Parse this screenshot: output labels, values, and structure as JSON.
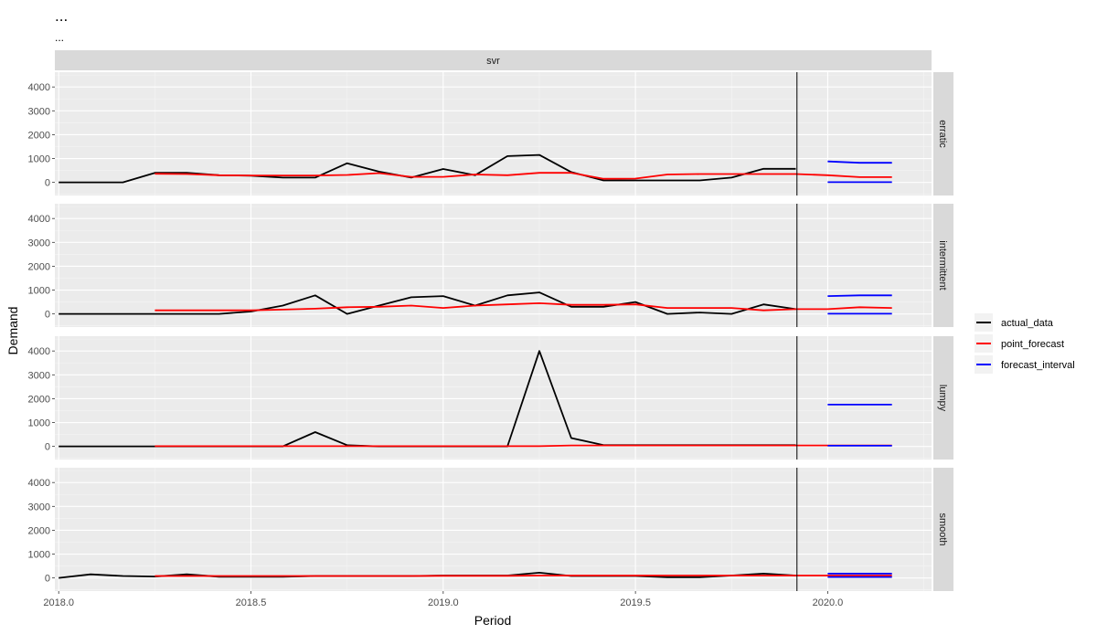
{
  "chart_data": {
    "type": "line",
    "title": "...",
    "subtitle": "...",
    "facet_column": "svr",
    "xlabel": "Period",
    "ylabel": "Demand",
    "xlim": [
      2017.99,
      2020.27
    ],
    "ylim": [
      -550,
      4620
    ],
    "x_ticks": [
      2018.0,
      2018.5,
      2019.0,
      2019.5,
      2020.0
    ],
    "x_tick_labels": [
      "2018.0",
      "2018.5",
      "2019.0",
      "2019.5",
      "2020.0"
    ],
    "y_ticks": [
      0,
      1000,
      2000,
      3000,
      4000
    ],
    "y_tick_labels": [
      "0",
      "1000",
      "2000",
      "3000",
      "4000"
    ],
    "vline_x": 2019.92,
    "grid": true,
    "legend_position": "right",
    "legend": [
      {
        "name": "actual_data",
        "color": "#000000"
      },
      {
        "name": "point_forecast",
        "color": "#ff0000"
      },
      {
        "name": "forecast_interval",
        "color": "#0000ff"
      }
    ],
    "panels": [
      {
        "label": "erratic",
        "actual_data": {
          "x": [
            2018.0,
            2018.083,
            2018.167,
            2018.25,
            2018.333,
            2018.417,
            2018.5,
            2018.583,
            2018.667,
            2018.75,
            2018.833,
            2018.917,
            2019.0,
            2019.083,
            2019.167,
            2019.25,
            2019.333,
            2019.417,
            2019.5,
            2019.583,
            2019.667,
            2019.75,
            2019.833,
            2019.917
          ],
          "y": [
            0,
            0,
            0,
            400,
            400,
            300,
            280,
            200,
            200,
            800,
            450,
            200,
            560,
            300,
            1100,
            1150,
            430,
            80,
            80,
            80,
            80,
            200,
            570,
            570
          ]
        },
        "point_forecast": {
          "x": [
            2018.25,
            2018.333,
            2018.417,
            2018.5,
            2018.583,
            2018.667,
            2018.75,
            2018.833,
            2018.917,
            2019.0,
            2019.083,
            2019.167,
            2019.25,
            2019.333,
            2019.417,
            2019.5,
            2019.583,
            2019.667,
            2019.75,
            2019.833,
            2019.917,
            2020.0,
            2020.083,
            2020.167
          ],
          "y": [
            360,
            350,
            300,
            290,
            290,
            290,
            310,
            390,
            230,
            230,
            330,
            300,
            400,
            400,
            150,
            160,
            330,
            350,
            350,
            350,
            350,
            300,
            220,
            220
          ]
        },
        "interval_upper": {
          "x": [
            2020.0,
            2020.083,
            2020.167
          ],
          "y": [
            880,
            820,
            820
          ]
        },
        "interval_lower": {
          "x": [
            2020.0,
            2020.083,
            2020.167
          ],
          "y": [
            10,
            10,
            10
          ]
        }
      },
      {
        "label": "intermittent",
        "actual_data": {
          "x": [
            2018.0,
            2018.083,
            2018.167,
            2018.25,
            2018.333,
            2018.417,
            2018.5,
            2018.583,
            2018.667,
            2018.75,
            2018.833,
            2018.917,
            2019.0,
            2019.083,
            2019.167,
            2019.25,
            2019.333,
            2019.417,
            2019.5,
            2019.583,
            2019.667,
            2019.75,
            2019.833,
            2019.917
          ],
          "y": [
            0,
            0,
            0,
            0,
            0,
            0,
            100,
            350,
            780,
            0,
            350,
            700,
            750,
            350,
            780,
            900,
            300,
            300,
            500,
            0,
            60,
            0,
            400,
            200
          ]
        },
        "point_forecast": {
          "x": [
            2018.25,
            2018.333,
            2018.417,
            2018.5,
            2018.583,
            2018.667,
            2018.75,
            2018.833,
            2018.917,
            2019.0,
            2019.083,
            2019.167,
            2019.25,
            2019.333,
            2019.417,
            2019.5,
            2019.583,
            2019.667,
            2019.75,
            2019.833,
            2019.917,
            2020.0,
            2020.083,
            2020.167
          ],
          "y": [
            150,
            150,
            150,
            150,
            180,
            220,
            280,
            300,
            350,
            250,
            350,
            400,
            450,
            380,
            380,
            400,
            250,
            250,
            250,
            150,
            200,
            200,
            280,
            250
          ]
        },
        "interval_upper": {
          "x": [
            2020.0,
            2020.083,
            2020.167
          ],
          "y": [
            750,
            780,
            780
          ]
        },
        "interval_lower": {
          "x": [
            2020.0,
            2020.083,
            2020.167
          ],
          "y": [
            10,
            10,
            10
          ]
        }
      },
      {
        "label": "lumpy",
        "actual_data": {
          "x": [
            2018.0,
            2018.083,
            2018.167,
            2018.25,
            2018.333,
            2018.417,
            2018.5,
            2018.583,
            2018.667,
            2018.75,
            2018.833,
            2018.917,
            2019.0,
            2019.083,
            2019.167,
            2019.25,
            2019.333,
            2019.417,
            2019.5,
            2019.583,
            2019.667,
            2019.75,
            2019.833,
            2019.917
          ],
          "y": [
            0,
            0,
            0,
            0,
            0,
            0,
            0,
            0,
            600,
            50,
            0,
            0,
            0,
            0,
            0,
            4000,
            350,
            50,
            50,
            50,
            50,
            50,
            50,
            50
          ]
        },
        "point_forecast": {
          "x": [
            2018.25,
            2018.333,
            2018.417,
            2018.5,
            2018.583,
            2018.667,
            2018.75,
            2018.833,
            2018.917,
            2019.0,
            2019.083,
            2019.167,
            2019.25,
            2019.333,
            2019.417,
            2019.5,
            2019.583,
            2019.667,
            2019.75,
            2019.833,
            2019.917,
            2020.0,
            2020.083,
            2020.167
          ],
          "y": [
            10,
            10,
            10,
            10,
            10,
            10,
            10,
            10,
            10,
            10,
            10,
            10,
            10,
            40,
            40,
            40,
            40,
            40,
            40,
            40,
            40,
            40,
            40,
            40
          ]
        },
        "interval_upper": {
          "x": [
            2020.0,
            2020.083,
            2020.167
          ],
          "y": [
            1750,
            1750,
            1750
          ]
        },
        "interval_lower": {
          "x": [
            2020.0,
            2020.083,
            2020.167
          ],
          "y": [
            30,
            30,
            30
          ]
        }
      },
      {
        "label": "smooth",
        "actual_data": {
          "x": [
            2018.0,
            2018.083,
            2018.167,
            2018.25,
            2018.333,
            2018.417,
            2018.5,
            2018.583,
            2018.667,
            2018.75,
            2018.833,
            2018.917,
            2019.0,
            2019.083,
            2019.167,
            2019.25,
            2019.333,
            2019.417,
            2019.5,
            2019.583,
            2019.667,
            2019.75,
            2019.833,
            2019.917
          ],
          "y": [
            0,
            150,
            80,
            60,
            150,
            50,
            50,
            50,
            80,
            80,
            80,
            80,
            100,
            100,
            100,
            220,
            80,
            80,
            80,
            30,
            30,
            100,
            180,
            100
          ]
        },
        "point_forecast": {
          "x": [
            2018.25,
            2018.333,
            2018.417,
            2018.5,
            2018.583,
            2018.667,
            2018.75,
            2018.833,
            2018.917,
            2019.0,
            2019.083,
            2019.167,
            2019.25,
            2019.333,
            2019.417,
            2019.5,
            2019.583,
            2019.667,
            2019.75,
            2019.833,
            2019.917,
            2020.0,
            2020.083,
            2020.167
          ],
          "y": [
            80,
            80,
            80,
            80,
            80,
            80,
            80,
            80,
            80,
            90,
            90,
            90,
            100,
            100,
            100,
            100,
            100,
            100,
            100,
            100,
            100,
            100,
            100,
            100
          ]
        },
        "interval_upper": {
          "x": [
            2020.0,
            2020.083,
            2020.167
          ],
          "y": [
            180,
            180,
            180
          ]
        },
        "interval_lower": {
          "x": [
            2020.0,
            2020.083,
            2020.167
          ],
          "y": [
            40,
            40,
            40
          ]
        }
      }
    ]
  }
}
